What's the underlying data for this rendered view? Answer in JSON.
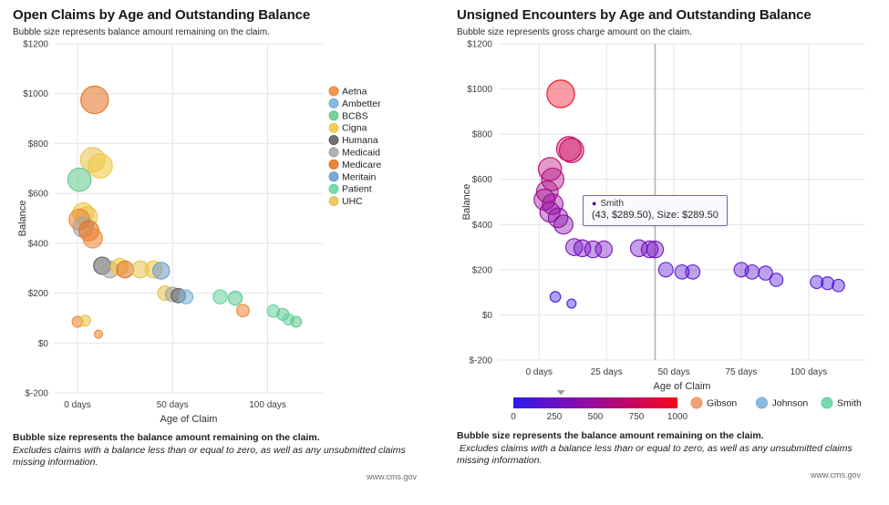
{
  "chart_data": [
    {
      "type": "scatter",
      "title": "Open Claims by Age and Outstanding Balance",
      "subtitle": "Bubble size represents balance amount remaining on the claim.",
      "xlabel": "Age of Claim",
      "ylabel": "Balance",
      "xlim": [
        -12,
        129
      ],
      "ylim": [
        -200,
        1200
      ],
      "grid": true,
      "legend_position": "right",
      "x_ticks": [
        {
          "v": 0,
          "label": "0 days"
        },
        {
          "v": 50,
          "label": "50 days"
        },
        {
          "v": 100,
          "label": "100 days"
        }
      ],
      "y_ticks": [
        {
          "v": 1200,
          "label": "$1200"
        },
        {
          "v": 1000,
          "label": "$1000"
        },
        {
          "v": 800,
          "label": "$800"
        },
        {
          "v": 600,
          "label": "$600"
        },
        {
          "v": 400,
          "label": "$400"
        },
        {
          "v": 200,
          "label": "$200"
        },
        {
          "v": 0,
          "label": "$0"
        },
        {
          "v": -200,
          "label": "$-200"
        }
      ],
      "legend": [
        {
          "name": "Aetna",
          "color": "#ee8532"
        },
        {
          "name": "Ambetter",
          "color": "#74aed6"
        },
        {
          "name": "BCBS",
          "color": "#5ec98c"
        },
        {
          "name": "Cigna",
          "color": "#f0c63f"
        },
        {
          "name": "Humana",
          "color": "#5b5b5b"
        },
        {
          "name": "Medicaid",
          "color": "#a3a3a3"
        },
        {
          "name": "Medicare",
          "color": "#e4701e"
        },
        {
          "name": "Meritain",
          "color": "#6699cc"
        },
        {
          "name": "Patient",
          "color": "#62d39d"
        },
        {
          "name": "UHC",
          "color": "#e7c14b"
        }
      ],
      "points": [
        {
          "x": 9,
          "y": 975,
          "size": 975,
          "payer": "Medicare"
        },
        {
          "x": 8,
          "y": 735,
          "size": 735,
          "payer": "UHC"
        },
        {
          "x": 12,
          "y": 710,
          "size": 710,
          "payer": "Cigna"
        },
        {
          "x": 1,
          "y": 655,
          "size": 655,
          "payer": "BCBS"
        },
        {
          "x": 3,
          "y": 520,
          "size": 520,
          "payer": "Cigna"
        },
        {
          "x": 5,
          "y": 505,
          "size": 505,
          "payer": "UHC"
        },
        {
          "x": 1,
          "y": 495,
          "size": 495,
          "payer": "Aetna"
        },
        {
          "x": 3,
          "y": 465,
          "size": 465,
          "payer": "Medicaid"
        },
        {
          "x": 6,
          "y": 450,
          "size": 450,
          "payer": "Medicare"
        },
        {
          "x": 8,
          "y": 420,
          "size": 420,
          "payer": "Aetna"
        },
        {
          "x": 13,
          "y": 310,
          "size": 310,
          "payer": "Humana"
        },
        {
          "x": 17,
          "y": 295,
          "size": 295,
          "payer": "Medicaid"
        },
        {
          "x": 22,
          "y": 305,
          "size": 305,
          "payer": "Cigna"
        },
        {
          "x": 25,
          "y": 295,
          "size": 295,
          "payer": "Medicare"
        },
        {
          "x": 33,
          "y": 295,
          "size": 295,
          "payer": "UHC"
        },
        {
          "x": 40,
          "y": 295,
          "size": 295,
          "payer": "Cigna"
        },
        {
          "x": 44,
          "y": 290,
          "size": 290,
          "payer": "Meritain"
        },
        {
          "x": 46,
          "y": 200,
          "size": 200,
          "payer": "UHC"
        },
        {
          "x": 50,
          "y": 195,
          "size": 195,
          "payer": "Medicaid"
        },
        {
          "x": 53,
          "y": 190,
          "size": 190,
          "payer": "Humana"
        },
        {
          "x": 57,
          "y": 185,
          "size": 185,
          "payer": "Ambetter"
        },
        {
          "x": 75,
          "y": 185,
          "size": 185,
          "payer": "Patient"
        },
        {
          "x": 83,
          "y": 180,
          "size": 180,
          "payer": "BCBS"
        },
        {
          "x": 87,
          "y": 130,
          "size": 130,
          "payer": "Aetna"
        },
        {
          "x": 103,
          "y": 128,
          "size": 128,
          "payer": "Patient"
        },
        {
          "x": 108,
          "y": 115,
          "size": 115,
          "payer": "BCBS"
        },
        {
          "x": 111,
          "y": 95,
          "size": 95,
          "payer": "Patient"
        },
        {
          "x": 115,
          "y": 85,
          "size": 85,
          "payer": "BCBS"
        },
        {
          "x": 0,
          "y": 85,
          "size": 85,
          "payer": "Aetna"
        },
        {
          "x": 4,
          "y": 90,
          "size": 90,
          "payer": "UHC"
        },
        {
          "x": 11,
          "y": 35,
          "size": 35,
          "payer": "Aetna"
        }
      ]
    },
    {
      "type": "scatter",
      "title": "Unsigned Encounters by Age and Outstanding Balance",
      "subtitle": "Bubble size represents gross charge amount on the claim.",
      "xlabel": "Age of Claim",
      "ylabel": "Balance",
      "xlim": [
        -15,
        121
      ],
      "ylim": [
        -200,
        1200
      ],
      "grid": true,
      "legend_position": "bottom",
      "crosshair_x": 43,
      "x_ticks": [
        {
          "v": 0,
          "label": "0 days"
        },
        {
          "v": 25,
          "label": "25 days"
        },
        {
          "v": 50,
          "label": "50 days"
        },
        {
          "v": 75,
          "label": "75 days"
        },
        {
          "v": 100,
          "label": "100 days"
        }
      ],
      "y_ticks": [
        {
          "v": 1200,
          "label": "$1200"
        },
        {
          "v": 1000,
          "label": "$1000"
        },
        {
          "v": 800,
          "label": "$800"
        },
        {
          "v": 600,
          "label": "$600"
        },
        {
          "v": 400,
          "label": "$400"
        },
        {
          "v": 200,
          "label": "$200"
        },
        {
          "v": 0,
          "label": "$0"
        },
        {
          "v": -200,
          "label": "$-200"
        }
      ],
      "colorbar": {
        "min": 0,
        "max": 1000,
        "ticks": [
          "0",
          "250",
          "500",
          "750",
          "1000"
        ],
        "stops": [
          "#2b1bf0",
          "#6a10c8",
          "#9b0b96",
          "#cc0658",
          "#f50818"
        ],
        "marker_value": 290
      },
      "legend": [
        {
          "name": "Gibson",
          "color": "#f0915c"
        },
        {
          "name": "Johnson",
          "color": "#76b0d8"
        },
        {
          "name": "Smith",
          "color": "#5fd0a0"
        }
      ],
      "tooltip": {
        "series": "Smith",
        "detail": "(43, $289.50), Size: $289.50",
        "dot_color": "#4b0f9d"
      },
      "points": [
        {
          "x": 8,
          "y": 978,
          "size": 978
        },
        {
          "x": 11,
          "y": 735,
          "size": 735
        },
        {
          "x": 12,
          "y": 728,
          "size": 728
        },
        {
          "x": 4,
          "y": 645,
          "size": 645
        },
        {
          "x": 5,
          "y": 600,
          "size": 600
        },
        {
          "x": 3,
          "y": 545,
          "size": 545
        },
        {
          "x": 2,
          "y": 510,
          "size": 510
        },
        {
          "x": 5,
          "y": 490,
          "size": 490
        },
        {
          "x": 4,
          "y": 455,
          "size": 455
        },
        {
          "x": 7,
          "y": 430,
          "size": 430
        },
        {
          "x": 9,
          "y": 400,
          "size": 400
        },
        {
          "x": 13,
          "y": 300,
          "size": 300
        },
        {
          "x": 16,
          "y": 295,
          "size": 295
        },
        {
          "x": 20,
          "y": 290,
          "size": 290
        },
        {
          "x": 24,
          "y": 290,
          "size": 290
        },
        {
          "x": 37,
          "y": 295,
          "size": 295
        },
        {
          "x": 41,
          "y": 290,
          "size": 290
        },
        {
          "x": 43,
          "y": 289.5,
          "size": 289.5
        },
        {
          "x": 47,
          "y": 200,
          "size": 200
        },
        {
          "x": 53,
          "y": 190,
          "size": 190
        },
        {
          "x": 57,
          "y": 190,
          "size": 190
        },
        {
          "x": 75,
          "y": 200,
          "size": 200
        },
        {
          "x": 79,
          "y": 190,
          "size": 190
        },
        {
          "x": 84,
          "y": 185,
          "size": 185
        },
        {
          "x": 88,
          "y": 155,
          "size": 155
        },
        {
          "x": 103,
          "y": 145,
          "size": 145
        },
        {
          "x": 107,
          "y": 140,
          "size": 140
        },
        {
          "x": 111,
          "y": 130,
          "size": 130
        },
        {
          "x": 6,
          "y": 80,
          "size": 80
        },
        {
          "x": 12,
          "y": 50,
          "size": 50
        }
      ]
    }
  ],
  "footers": [
    {
      "bold": "Bubble size represents the balance amount remaining on the claim.",
      "italic": "Excludes claims with a balance less than or equal to zero, as well as any unsubmitted claims missing information.",
      "source": "www.cms.gov"
    },
    {
      "bold": "Bubble size represents the balance amount remaining on the claim.",
      "italic": " Excludes claims with a balance less than or equal to zero, as well as any unsubmitted claims missing information.",
      "source": "www.cms.gov"
    }
  ]
}
